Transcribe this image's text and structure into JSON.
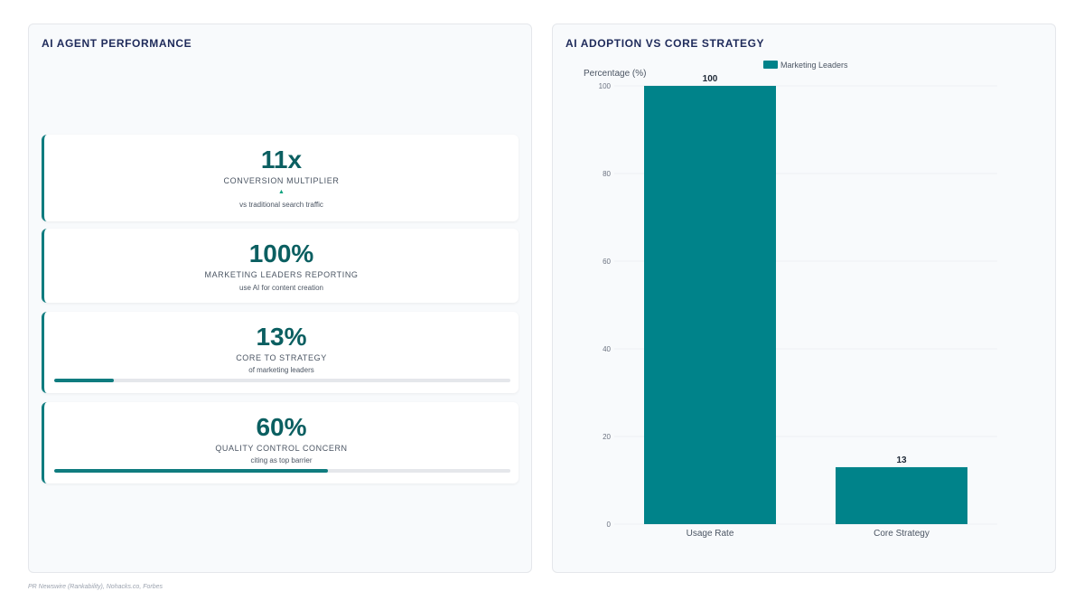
{
  "left_panel": {
    "title": "AI AGENT PERFORMANCE",
    "cards": [
      {
        "value": "11x",
        "label": "CONVERSION MULTIPLIER",
        "trend": "▲",
        "sub": "vs traditional search traffic"
      },
      {
        "value": "100%",
        "label": "MARKETING LEADERS REPORTING",
        "sub": "use AI for content creation"
      },
      {
        "value": "13%",
        "label": "CORE TO STRATEGY",
        "sub": "of marketing leaders",
        "progress": 0.13
      },
      {
        "value": "60%",
        "label": "QUALITY CONTROL CONCERN",
        "sub": "citing as top barrier",
        "progress": 0.6
      }
    ]
  },
  "right_panel": {
    "title": "AI ADOPTION VS CORE STRATEGY"
  },
  "chart_data": {
    "type": "bar",
    "categories": [
      "Usage Rate",
      "Core Strategy"
    ],
    "series": [
      {
        "name": "Marketing Leaders",
        "values": [
          100,
          13
        ],
        "color": "#00838a"
      }
    ],
    "ylabel": "Percentage (%)",
    "xlabel": "",
    "ylim": [
      0,
      100
    ],
    "yticks": [
      0,
      20,
      40,
      60,
      80,
      100
    ],
    "grid": true,
    "legend": "top-center",
    "data_labels": [
      "100",
      "13"
    ]
  },
  "source": "PR Newswire (Rankability), Nohacks.co, Forbes"
}
